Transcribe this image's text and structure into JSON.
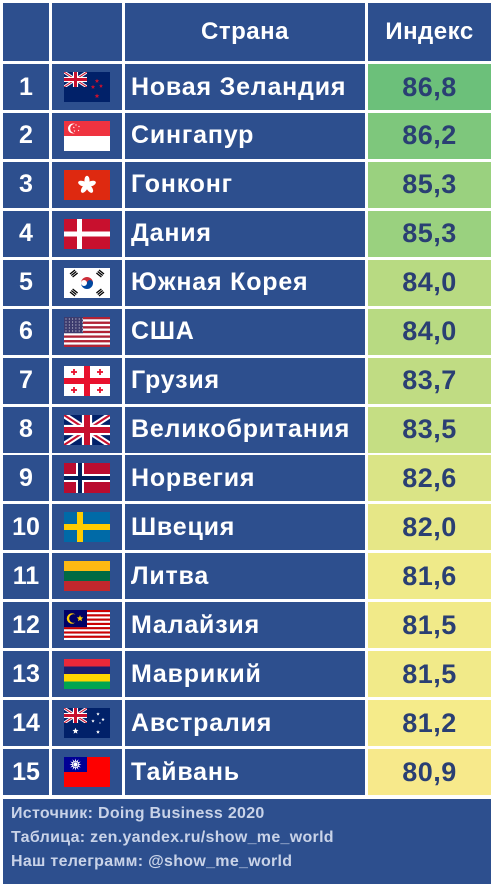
{
  "chart_data": {
    "type": "table",
    "columns": [
      "",
      "",
      "Страна",
      "Индекс"
    ],
    "rows": [
      {
        "rank": "1",
        "flag": "new-zealand-flag",
        "country": "Новая Зеландия",
        "index": "86,8",
        "value": 86.8,
        "color": "#6cc07a"
      },
      {
        "rank": "2",
        "flag": "singapore-flag",
        "country": "Сингапур",
        "index": "86,2",
        "value": 86.2,
        "color": "#7ec77c"
      },
      {
        "rank": "3",
        "flag": "hong-kong-flag",
        "country": "Гонконг",
        "index": "85,3",
        "value": 85.3,
        "color": "#9ad17f"
      },
      {
        "rank": "4",
        "flag": "denmark-flag",
        "country": "Дания",
        "index": "85,3",
        "value": 85.3,
        "color": "#9ad17f"
      },
      {
        "rank": "5",
        "flag": "south-korea-flag",
        "country": "Южная Корея",
        "index": "84,0",
        "value": 84.0,
        "color": "#b8da82"
      },
      {
        "rank": "6",
        "flag": "usa-flag",
        "country": "США",
        "index": "84,0",
        "value": 84.0,
        "color": "#b8da82"
      },
      {
        "rank": "7",
        "flag": "georgia-flag",
        "country": "Грузия",
        "index": "83,7",
        "value": 83.7,
        "color": "#c0dc83"
      },
      {
        "rank": "8",
        "flag": "uk-flag",
        "country": "Великобритания",
        "index": "83,5",
        "value": 83.5,
        "color": "#c5de83"
      },
      {
        "rank": "9",
        "flag": "norway-flag",
        "country": "Норвегия",
        "index": "82,6",
        "value": 82.6,
        "color": "#daE486"
      },
      {
        "rank": "10",
        "flag": "sweden-flag",
        "country": "Швеция",
        "index": "82,0",
        "value": 82.0,
        "color": "#e6e787"
      },
      {
        "rank": "11",
        "flag": "lithuania-flag",
        "country": "Литва",
        "index": "81,6",
        "value": 81.6,
        "color": "#efea89"
      },
      {
        "rank": "12",
        "flag": "malaysia-flag",
        "country": "Малайзия",
        "index": "81,5",
        "value": 81.5,
        "color": "#f1ea89"
      },
      {
        "rank": "13",
        "flag": "mauritius-flag",
        "country": "Маврикий",
        "index": "81,5",
        "value": 81.5,
        "color": "#f1ea89"
      },
      {
        "rank": "14",
        "flag": "australia-flag",
        "country": "Австралия",
        "index": "81,2",
        "value": 81.2,
        "color": "#f5eb8a"
      },
      {
        "rank": "15",
        "flag": "taiwan-flag",
        "country": "Тайвань",
        "index": "80,9",
        "value": 80.9,
        "color": "#f7e98b"
      }
    ]
  },
  "footer": {
    "source": "Источник: Doing Business 2020",
    "table": "Таблица: zen.yandex.ru/show_me_world",
    "telegram": "Наш телеграмм: @show_me_world"
  },
  "colors": {
    "cell_bg": "#2d4f8e",
    "index_text": "#2a3f73",
    "grid_lines": "#ffffff"
  }
}
